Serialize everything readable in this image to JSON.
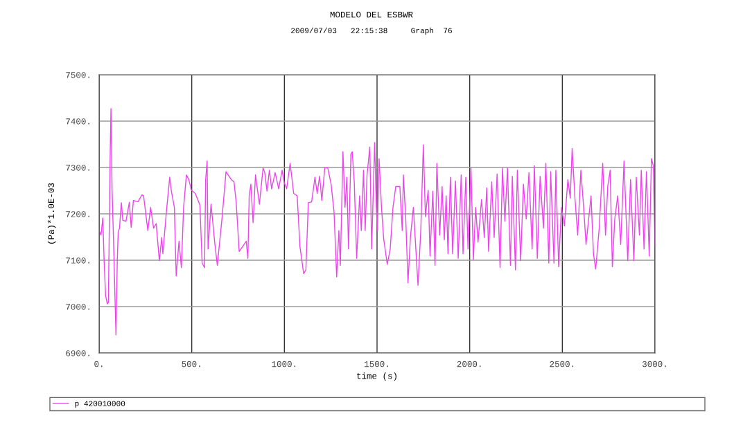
{
  "chart_data": {
    "type": "line",
    "title": "MODELO DEL ESBWR",
    "subtitle": "2009/07/03   22:15:38     Graph  76",
    "xlabel": "time (s)",
    "ylabel": "(Pa)*1.0E-03",
    "xlim": [
      0,
      3000
    ],
    "xticks": [
      {
        "value": 0,
        "label": "0."
      },
      {
        "value": 500,
        "label": "500."
      },
      {
        "value": 1000,
        "label": "1000."
      },
      {
        "value": 1500,
        "label": "1500."
      },
      {
        "value": 2000,
        "label": "2000."
      },
      {
        "value": 2500,
        "label": "2500."
      },
      {
        "value": 3000,
        "label": "3000."
      }
    ],
    "ylim": [
      6900,
      7500
    ],
    "yticks": [
      {
        "value": 6900,
        "label": "6900."
      },
      {
        "value": 7000,
        "label": "7000."
      },
      {
        "value": 7100,
        "label": "7100."
      },
      {
        "value": 7200,
        "label": "7200."
      },
      {
        "value": 7300,
        "label": "7300."
      },
      {
        "value": 7400,
        "label": "7400."
      },
      {
        "value": 7500,
        "label": "7500."
      }
    ],
    "grid": true,
    "legend": "bottom",
    "marker": "none",
    "line_style": "solid",
    "series": [
      {
        "name": "p 420010000",
        "color": "#ee44ee",
        "x": [
          0,
          10,
          20,
          27,
          35,
          44,
          50,
          60,
          64,
          70,
          79,
          88,
          91,
          98,
          103,
          110,
          120,
          128,
          145,
          163,
          173,
          185,
          210,
          231,
          240,
          263,
          278,
          294,
          308,
          325,
          338,
          344,
          363,
          381,
          390,
          406,
          416,
          431,
          444,
          456,
          471,
          484,
          498,
          519,
          544,
          556,
          569,
          575,
          583,
          588,
          604,
          625,
          638,
          663,
          685,
          713,
          728,
          740,
          756,
          794,
          803,
          810,
          819,
          831,
          844,
          865,
          885,
          894,
          906,
          919,
          931,
          950,
          969,
          988,
          998,
          1012,
          1031,
          1050,
          1069,
          1084,
          1104,
          1116,
          1129,
          1147,
          1165,
          1177,
          1190,
          1202,
          1218,
          1234,
          1252,
          1268,
          1282,
          1294,
          1302,
          1316,
          1327,
          1337,
          1346,
          1359,
          1366,
          1377,
          1390,
          1406,
          1415,
          1427,
          1436,
          1446,
          1461,
          1471,
          1487,
          1496,
          1502,
          1511,
          1524,
          1536,
          1555,
          1571,
          1586,
          1601,
          1623,
          1636,
          1642,
          1655,
          1667,
          1680,
          1696,
          1721,
          1736,
          1750,
          1761,
          1776,
          1786,
          1801,
          1813,
          1823,
          1838,
          1851,
          1863,
          1873,
          1883,
          1896,
          1908,
          1923,
          1938,
          1954,
          1964,
          1979,
          1991,
          2007,
          2020,
          2032,
          2045,
          2064,
          2079,
          2092,
          2102,
          2119,
          2132,
          2148,
          2164,
          2177,
          2190,
          2204,
          2220,
          2230,
          2247,
          2257,
          2275,
          2290,
          2305,
          2320,
          2337,
          2349,
          2365,
          2380,
          2398,
          2411,
          2427,
          2437,
          2455,
          2465,
          2480,
          2495,
          2511,
          2530,
          2543,
          2553,
          2568,
          2583,
          2600,
          2615,
          2628,
          2655,
          2668,
          2680,
          2699,
          2718,
          2733,
          2745,
          2758,
          2770,
          2783,
          2799,
          2815,
          2833,
          2853,
          2868,
          2886,
          2899,
          2916,
          2926,
          2941,
          2954,
          2969,
          2981,
          2991,
          3000
        ],
        "values": [
          7164,
          7154,
          7191,
          7099,
          7024,
          7006,
          7009,
          7334,
          7427,
          7254,
          7124,
          6984,
          6939,
          7099,
          7161,
          7169,
          7224,
          7186,
          7184,
          7225,
          7171,
          7229,
          7226,
          7241,
          7239,
          7164,
          7214,
          7169,
          7179,
          7099,
          7149,
          7114,
          7204,
          7279,
          7249,
          7214,
          7066,
          7141,
          7084,
          7214,
          7284,
          7274,
          7251,
          7244,
          7219,
          7094,
          7084,
          7274,
          7314,
          7124,
          7221,
          7134,
          7089,
          7189,
          7291,
          7274,
          7269,
          7224,
          7119,
          7141,
          7104,
          7239,
          7264,
          7181,
          7284,
          7221,
          7299,
          7289,
          7249,
          7294,
          7254,
          7289,
          7254,
          7294,
          7269,
          7254,
          7309,
          7244,
          7239,
          7129,
          7071,
          7079,
          7224,
          7226,
          7279,
          7244,
          7281,
          7229,
          7299,
          7299,
          7264,
          7204,
          7064,
          7164,
          7089,
          7334,
          7214,
          7279,
          7124,
          7329,
          7334,
          7269,
          7104,
          7239,
          7164,
          7294,
          7164,
          7284,
          7344,
          7124,
          7354,
          7214,
          7164,
          7319,
          7214,
          7146,
          7091,
          7124,
          7214,
          7259,
          7259,
          7164,
          7284,
          7189,
          7051,
          7149,
          7214,
          7046,
          7164,
          7349,
          7194,
          7251,
          7109,
          7249,
          7089,
          7309,
          7154,
          7259,
          7144,
          7239,
          7114,
          7279,
          7114,
          7271,
          7104,
          7284,
          7114,
          7279,
          7124,
          7299,
          7101,
          7214,
          7139,
          7231,
          7149,
          7256,
          7119,
          7269,
          7149,
          7286,
          7084,
          7299,
          7184,
          7299,
          7089,
          7281,
          7079,
          7294,
          7099,
          7264,
          7189,
          7289,
          7124,
          7304,
          7104,
          7281,
          7169,
          7309,
          7094,
          7291,
          7094,
          7294,
          7086,
          7214,
          7174,
          7274,
          7234,
          7341,
          7234,
          7154,
          7294,
          7214,
          7134,
          7239,
          7114,
          7081,
          7169,
          7309,
          7154,
          7259,
          7294,
          7086,
          7189,
          7239,
          7134,
          7314,
          7099,
          7274,
          7099,
          7279,
          7154,
          7294,
          7124,
          7291,
          7109,
          7319,
          7304,
          7129
        ]
      }
    ]
  }
}
